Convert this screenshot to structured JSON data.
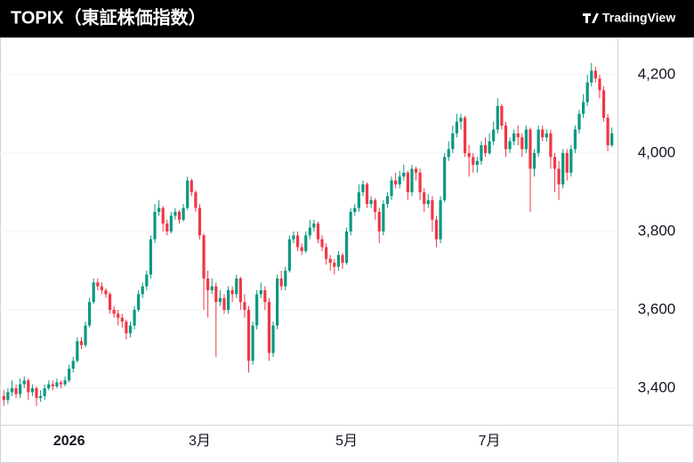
{
  "chart_data": {
    "type": "candlestick",
    "title": "TOPIX（東証株価指数）",
    "source": "TradingView",
    "up_color": "#089981",
    "down_color": "#f23645",
    "ylim": [
      3307,
      4295
    ],
    "yticks": [
      {
        "value": 3400,
        "label": "3,400"
      },
      {
        "value": 3600,
        "label": "3,600"
      },
      {
        "value": 3800,
        "label": "3,800"
      },
      {
        "value": 4000,
        "label": "4,000"
      },
      {
        "value": 4200,
        "label": "4,200"
      }
    ],
    "grid": true,
    "categories": [
      null,
      null,
      null,
      null,
      null,
      null,
      null,
      null,
      null,
      null,
      null,
      null,
      null,
      null,
      null,
      null,
      "2026",
      null,
      null,
      null,
      null,
      null,
      null,
      null,
      null,
      null,
      null,
      null,
      null,
      null,
      null,
      null,
      null,
      null,
      null,
      null,
      null,
      null,
      null,
      null,
      null,
      null,
      null,
      null,
      null,
      null,
      null,
      null,
      "3月",
      null,
      null,
      null,
      null,
      null,
      null,
      null,
      null,
      null,
      null,
      null,
      null,
      null,
      null,
      null,
      null,
      null,
      null,
      null,
      null,
      null,
      null,
      null,
      null,
      null,
      null,
      null,
      null,
      null,
      null,
      null,
      null,
      null,
      null,
      null,
      "5月",
      null,
      null,
      null,
      null,
      null,
      null,
      null,
      null,
      null,
      null,
      null,
      null,
      null,
      null,
      null,
      null,
      null,
      null,
      null,
      null,
      null,
      null,
      null,
      null,
      null,
      null,
      null,
      null,
      null,
      null,
      null,
      null,
      null,
      null,
      "7月",
      null,
      null,
      null,
      null,
      null,
      null,
      null,
      null,
      null,
      null,
      null,
      null,
      null,
      null,
      null,
      null,
      null,
      null,
      null,
      null,
      null,
      null,
      null,
      null,
      null,
      null,
      null,
      null,
      null,
      null
    ],
    "open": [
      3380,
      3370,
      3390,
      3400,
      3385,
      3410,
      3420,
      3390,
      3400,
      3375,
      3380,
      3400,
      3410,
      3405,
      3415,
      3410,
      3420,
      3450,
      3470,
      3520,
      3510,
      3560,
      3620,
      3670,
      3660,
      3650,
      3640,
      3600,
      3590,
      3580,
      3570,
      3540,
      3560,
      3600,
      3640,
      3660,
      3690,
      3780,
      3850,
      3860,
      3820,
      3800,
      3840,
      3850,
      3830,
      3860,
      3930,
      3900,
      3860,
      3790,
      3680,
      3650,
      3660,
      3620,
      3630,
      3600,
      3650,
      3640,
      3680,
      3620,
      3600,
      3470,
      3560,
      3640,
      3650,
      3620,
      3490,
      3560,
      3680,
      3660,
      3700,
      3780,
      3790,
      3760,
      3750,
      3790,
      3810,
      3820,
      3780,
      3760,
      3730,
      3720,
      3710,
      3740,
      3720,
      3800,
      3850,
      3860,
      3900,
      3920,
      3870,
      3880,
      3850,
      3800,
      3870,
      3890,
      3930,
      3920,
      3940,
      3950,
      3900,
      3960,
      3950,
      3900,
      3870,
      3880,
      3830,
      3780,
      3880,
      3990,
      4010,
      4050,
      4080,
      4090,
      4000,
      3990,
      3970,
      3980,
      4020,
      4000,
      4030,
      4060,
      4120,
      4070,
      4010,
      4030,
      4050,
      4040,
      4010,
      4060,
      3960,
      4000,
      4060,
      4040,
      4050,
      3990,
      3960,
      3920,
      4000,
      3950,
      4010,
      4060,
      4100,
      4130,
      4180,
      4210,
      4190,
      4160,
      4090,
      4020
    ],
    "high": [
      3395,
      3400,
      3420,
      3410,
      3425,
      3430,
      3425,
      3410,
      3405,
      3395,
      3410,
      3420,
      3420,
      3425,
      3420,
      3430,
      3460,
      3480,
      3530,
      3530,
      3570,
      3630,
      3680,
      3680,
      3670,
      3655,
      3645,
      3610,
      3600,
      3590,
      3575,
      3570,
      3610,
      3650,
      3670,
      3700,
      3790,
      3870,
      3880,
      3865,
      3830,
      3850,
      3860,
      3855,
      3870,
      3940,
      3935,
      3905,
      3870,
      3795,
      3700,
      3680,
      3670,
      3650,
      3640,
      3660,
      3660,
      3690,
      3685,
      3640,
      3610,
      3570,
      3650,
      3670,
      3660,
      3630,
      3570,
      3690,
      3700,
      3710,
      3790,
      3800,
      3800,
      3770,
      3800,
      3830,
      3830,
      3825,
      3790,
      3770,
      3740,
      3730,
      3750,
      3745,
      3810,
      3860,
      3870,
      3920,
      3930,
      3925,
      3890,
      3885,
      3860,
      3880,
      3900,
      3940,
      3950,
      3955,
      3970,
      3955,
      3970,
      3965,
      3960,
      3910,
      3895,
      3890,
      3840,
      3890,
      4000,
      4030,
      4070,
      4100,
      4100,
      4095,
      4020,
      4000,
      3990,
      4030,
      4040,
      4050,
      4080,
      4140,
      4125,
      4080,
      4040,
      4060,
      4070,
      4050,
      4070,
      4065,
      4010,
      4070,
      4070,
      4060,
      4060,
      4000,
      3980,
      4010,
      4010,
      4020,
      4070,
      4110,
      4150,
      4200,
      4230,
      4220,
      4200,
      4170,
      4100,
      4065
    ],
    "low": [
      3355,
      3360,
      3380,
      3375,
      3375,
      3400,
      3370,
      3380,
      3355,
      3365,
      3370,
      3395,
      3395,
      3400,
      3400,
      3405,
      3415,
      3440,
      3465,
      3500,
      3505,
      3555,
      3615,
      3650,
      3640,
      3630,
      3590,
      3580,
      3560,
      3555,
      3525,
      3530,
      3550,
      3595,
      3630,
      3650,
      3680,
      3770,
      3840,
      3800,
      3790,
      3795,
      3830,
      3820,
      3825,
      3855,
      3890,
      3850,
      3780,
      3600,
      3580,
      3640,
      3480,
      3610,
      3590,
      3590,
      3620,
      3630,
      3600,
      3580,
      3440,
      3460,
      3550,
      3630,
      3600,
      3470,
      3480,
      3550,
      3650,
      3650,
      3695,
      3770,
      3750,
      3740,
      3745,
      3780,
      3800,
      3770,
      3750,
      3715,
      3700,
      3690,
      3700,
      3705,
      3715,
      3790,
      3840,
      3850,
      3890,
      3860,
      3860,
      3830,
      3770,
      3790,
      3860,
      3880,
      3910,
      3910,
      3930,
      3880,
      3890,
      3930,
      3880,
      3850,
      3860,
      3800,
      3760,
      3770,
      3875,
      3980,
      4000,
      4040,
      4060,
      3990,
      3940,
      3950,
      3950,
      3970,
      3990,
      3995,
      4020,
      4050,
      4060,
      3990,
      4000,
      4020,
      4020,
      3990,
      4000,
      3850,
      3940,
      3990,
      4030,
      4030,
      3960,
      3900,
      3880,
      3910,
      3930,
      3940,
      4000,
      4050,
      4090,
      4120,
      4170,
      4180,
      4140,
      4080,
      4005,
      4015
    ],
    "close": [
      3370,
      3390,
      3400,
      3385,
      3410,
      3420,
      3390,
      3400,
      3375,
      3380,
      3400,
      3410,
      3405,
      3415,
      3410,
      3420,
      3450,
      3470,
      3520,
      3510,
      3560,
      3620,
      3670,
      3660,
      3650,
      3640,
      3600,
      3590,
      3580,
      3570,
      3540,
      3560,
      3600,
      3640,
      3660,
      3690,
      3780,
      3850,
      3860,
      3820,
      3800,
      3840,
      3850,
      3830,
      3860,
      3930,
      3900,
      3860,
      3790,
      3680,
      3650,
      3660,
      3620,
      3630,
      3600,
      3650,
      3640,
      3680,
      3620,
      3600,
      3470,
      3560,
      3640,
      3650,
      3620,
      3490,
      3560,
      3680,
      3660,
      3700,
      3780,
      3790,
      3760,
      3750,
      3790,
      3810,
      3820,
      3780,
      3760,
      3730,
      3720,
      3710,
      3740,
      3720,
      3800,
      3850,
      3860,
      3900,
      3920,
      3870,
      3880,
      3850,
      3800,
      3870,
      3890,
      3930,
      3920,
      3940,
      3950,
      3900,
      3960,
      3950,
      3900,
      3870,
      3880,
      3830,
      3780,
      3880,
      3990,
      4010,
      4050,
      4080,
      4090,
      4000,
      3990,
      3970,
      3980,
      4020,
      4000,
      4030,
      4060,
      4120,
      4070,
      4010,
      4030,
      4050,
      4040,
      4010,
      4060,
      3960,
      4000,
      4060,
      4040,
      4050,
      3990,
      3960,
      3920,
      4000,
      3950,
      4010,
      4060,
      4100,
      4130,
      4180,
      4210,
      4190,
      4160,
      4090,
      4020,
      4050
    ]
  }
}
